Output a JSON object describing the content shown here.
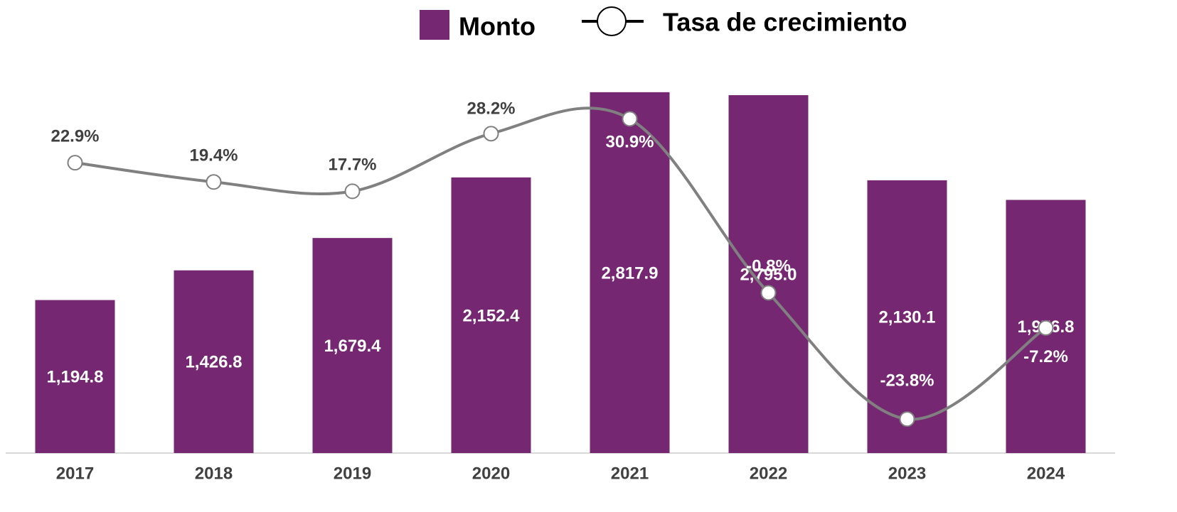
{
  "chart_data": {
    "type": "bar",
    "categories": [
      "2017",
      "2018",
      "2019",
      "2020",
      "2021",
      "2022",
      "2023",
      "2024"
    ],
    "series": [
      {
        "name": "Monto",
        "type": "bar",
        "color": "#762772",
        "values": [
          1194.8,
          1426.8,
          1679.4,
          2152.4,
          2817.9,
          2795.0,
          2130.1,
          1976.8
        ],
        "value_labels": [
          "1,194.8",
          "1,426.8",
          "1,679.4",
          "2,152.4",
          "2,817.9",
          "2,795.0",
          "2,130.1",
          "1,976.8"
        ]
      },
      {
        "name": "Tasa de crecimiento",
        "type": "line",
        "axis": "y2",
        "color": "#808080",
        "values": [
          22.9,
          19.4,
          17.7,
          28.2,
          30.9,
          -0.8,
          -23.8,
          -7.2
        ],
        "value_labels": [
          "22.9%",
          "19.4%",
          "17.7%",
          "28.2%",
          "30.9%",
          "-0.8%",
          "-23.8%",
          "-7.2%"
        ]
      }
    ],
    "ylim": [
      0,
      3000
    ],
    "y2lim": [
      -30,
      40
    ],
    "legend": "top"
  }
}
